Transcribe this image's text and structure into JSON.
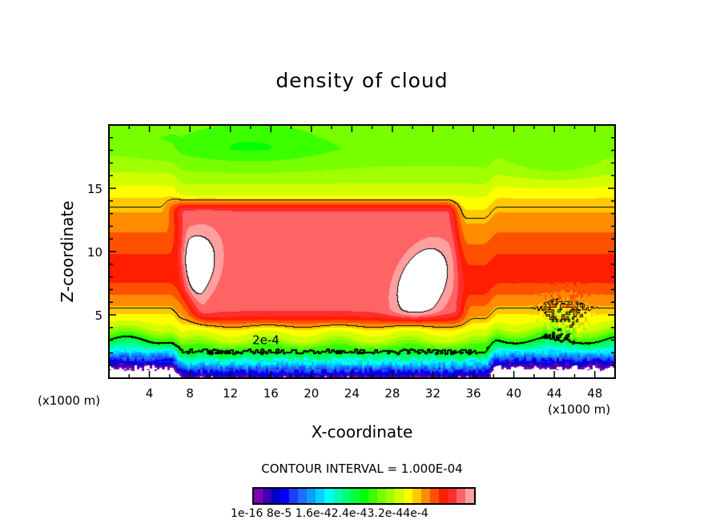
{
  "chart_data": {
    "type": "heatmap",
    "title": "density of cloud",
    "xlabel": "X-coordinate",
    "ylabel": "Z-coordinate",
    "x_unit_label": "(x1000 m)",
    "xlim": [
      0,
      50
    ],
    "ylim": [
      0,
      20
    ],
    "xticks": [
      4,
      8,
      12,
      16,
      20,
      24,
      28,
      32,
      36,
      40,
      44,
      48
    ],
    "yticks": [
      5,
      10,
      15
    ],
    "contour_interval_label": "CONTOUR INTERVAL = 1.000E-04",
    "contour_label": "2e-4",
    "contour_levels": [
      0.0002,
      0.0003
    ],
    "value_range": [
      1e-16,
      0.0004
    ],
    "colorbar_labels": [
      "1e-16",
      "8e-5",
      "1.6e-4",
      "2.4e-4",
      "3.2e-4",
      "4e-4"
    ],
    "colors": [
      "#8000b0",
      "#3a00b8",
      "#0000c8",
      "#0000ff",
      "#1e3cff",
      "#1e6eff",
      "#00a0ff",
      "#00d2ff",
      "#00ffff",
      "#00ffb4",
      "#00ff78",
      "#00ff3c",
      "#00ff00",
      "#3cff00",
      "#78ff00",
      "#a0ff00",
      "#d2ff00",
      "#ffff00",
      "#ffc800",
      "#ff8c00",
      "#ff5000",
      "#ff1e00",
      "#ff2d2d",
      "#ff6464",
      "#ffa0a0"
    ],
    "peaks": [
      {
        "x": 8,
        "z": 8.5
      },
      {
        "x": 31,
        "z": 7.5
      }
    ]
  }
}
